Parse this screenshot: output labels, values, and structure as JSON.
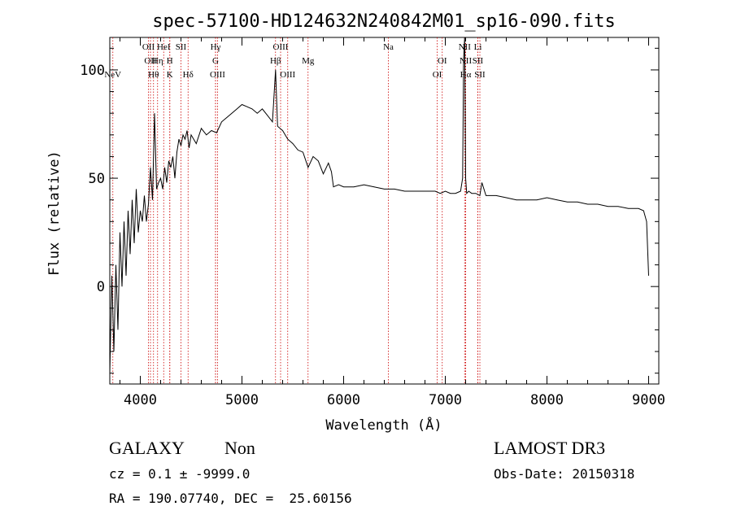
{
  "chart_data": {
    "type": "line",
    "title": "spec-57100-HD124632N240842M01_sp16-090.fits",
    "xlabel": "Wavelength (Å)",
    "ylabel": "Flux (relative)",
    "xlim": [
      3700,
      9100
    ],
    "ylim": [
      -45,
      115
    ],
    "x_ticks": [
      4000,
      5000,
      6000,
      7000,
      8000,
      9000
    ],
    "y_ticks": [
      0,
      50,
      100
    ],
    "grid": false,
    "line_color": "#000000",
    "marker_color": "#cc0000",
    "lines": [
      {
        "label": "NeV",
        "x": 3730,
        "row": 3
      },
      {
        "label": "OII",
        "x": 4080,
        "row": 1
      },
      {
        "label": "OII",
        "x": 4100,
        "row": 2
      },
      {
        "label": "Hθ",
        "x": 4130,
        "row": 3
      },
      {
        "label": "Hη",
        "x": 4170,
        "row": 2
      },
      {
        "label": "HeI",
        "x": 4230,
        "row": 1
      },
      {
        "label": "H",
        "x": 4290,
        "row": 2
      },
      {
        "label": "K",
        "x": 4290,
        "row": 3
      },
      {
        "label": "SII",
        "x": 4400,
        "row": 1
      },
      {
        "label": "Hδ",
        "x": 4470,
        "row": 3
      },
      {
        "label": "Hγ",
        "x": 4740,
        "row": 1
      },
      {
        "label": "G",
        "x": 4740,
        "row": 2
      },
      {
        "label": "OIII",
        "x": 4760,
        "row": 3
      },
      {
        "label": "OIII",
        "x": 5380,
        "row": 1
      },
      {
        "label": "Hβ",
        "x": 5330,
        "row": 2
      },
      {
        "label": "OIII",
        "x": 5450,
        "row": 3
      },
      {
        "label": "Mg",
        "x": 5650,
        "row": 2
      },
      {
        "label": "Na",
        "x": 6440,
        "row": 1
      },
      {
        "label": "OI",
        "x": 6970,
        "row": 2
      },
      {
        "label": "OI",
        "x": 6920,
        "row": 3
      },
      {
        "label": "NII",
        "x": 7190,
        "row": 1
      },
      {
        "label": "NII",
        "x": 7200,
        "row": 2
      },
      {
        "label": "Hα",
        "x": 7200,
        "row": 3
      },
      {
        "label": "Li",
        "x": 7320,
        "row": 1
      },
      {
        "label": "SII",
        "x": 7320,
        "row": 2
      },
      {
        "label": "SII",
        "x": 7340,
        "row": 3
      }
    ],
    "series": [
      {
        "x": [
          3700,
          3720,
          3740,
          3760,
          3780,
          3800,
          3820,
          3840,
          3860,
          3880,
          3900,
          3920,
          3940,
          3960,
          3980,
          4000,
          4020,
          4040,
          4060,
          4080,
          4100,
          4120,
          4140,
          4160,
          4180,
          4200,
          4220,
          4240,
          4260,
          4280,
          4300,
          4320,
          4340,
          4360,
          4380,
          4400,
          4420,
          4440,
          4460,
          4480,
          4500,
          4550,
          4600,
          4650,
          4700,
          4750,
          4800,
          4850,
          4900,
          4950,
          5000,
          5050,
          5100,
          5150,
          5200,
          5250,
          5300,
          5330,
          5350,
          5400,
          5450,
          5500,
          5550,
          5600,
          5650,
          5700,
          5750,
          5800,
          5850,
          5880,
          5900,
          5950,
          6000,
          6100,
          6200,
          6300,
          6400,
          6500,
          6600,
          6700,
          6800,
          6900,
          6950,
          7000,
          7050,
          7100,
          7150,
          7170,
          7180,
          7190,
          7200,
          7210,
          7230,
          7260,
          7300,
          7340,
          7360,
          7400,
          7500,
          7600,
          7700,
          7800,
          7900,
          8000,
          8100,
          8200,
          8300,
          8400,
          8500,
          8600,
          8700,
          8800,
          8900,
          8950,
          8980,
          9000
        ],
        "y": [
          -40,
          5,
          -30,
          10,
          -20,
          25,
          0,
          30,
          5,
          35,
          15,
          40,
          20,
          45,
          25,
          35,
          30,
          42,
          30,
          38,
          55,
          40,
          80,
          45,
          48,
          50,
          45,
          55,
          48,
          58,
          55,
          60,
          50,
          62,
          68,
          65,
          70,
          68,
          72,
          64,
          70,
          66,
          73,
          70,
          72,
          71,
          76,
          78,
          80,
          82,
          84,
          83,
          82,
          80,
          82,
          79,
          76,
          100,
          74,
          72,
          68,
          66,
          63,
          62,
          55,
          60,
          58,
          52,
          57,
          53,
          46,
          47,
          46,
          46,
          47,
          46,
          45,
          45,
          44,
          44,
          44,
          44,
          43,
          44,
          43,
          43,
          44,
          50,
          105,
          115,
          50,
          43,
          44,
          43,
          43,
          42,
          48,
          42,
          42,
          41,
          40,
          40,
          40,
          41,
          40,
          39,
          39,
          38,
          38,
          37,
          37,
          36,
          36,
          35,
          30,
          5
        ]
      }
    ],
    "info": {
      "class_label": "GALAXY",
      "subclass_label": "Non",
      "survey": "LAMOST DR3",
      "cz_line": "cz = 0.1 ± -9999.0",
      "obs_date": "Obs-Date: 20150318",
      "radec_line": "RA = 190.07740, DEC =  25.60156"
    }
  }
}
